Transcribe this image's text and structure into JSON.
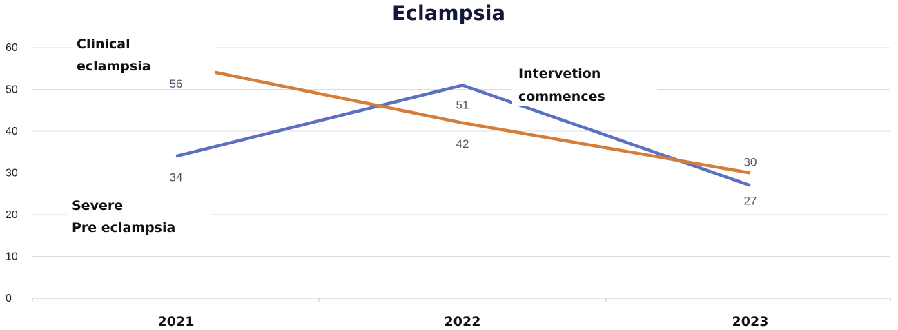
{
  "chart_data": {
    "type": "line",
    "title": "Eclampsia",
    "categories": [
      "2021",
      "2022",
      "2023"
    ],
    "ylim": [
      0,
      60
    ],
    "yticks": [
      "0",
      "10",
      "20",
      "30",
      "40",
      "50",
      "60"
    ],
    "grid": true,
    "series": [
      {
        "values": [
          56,
          42,
          30
        ],
        "color": "#d47e3a",
        "labels": [
          "56",
          "42",
          "30"
        ]
      },
      {
        "values": [
          34,
          51,
          27
        ],
        "color": "#5b70bf",
        "labels": [
          "34",
          "51",
          "27"
        ]
      }
    ],
    "annotations": [
      {
        "id": "clinical",
        "lines": [
          "Clinical",
          "eclampsia"
        ]
      },
      {
        "id": "severe",
        "lines": [
          "Severe",
          "Pre eclampsia"
        ]
      },
      {
        "id": "intervention",
        "lines": [
          "Intervetion",
          "commences"
        ]
      }
    ]
  }
}
